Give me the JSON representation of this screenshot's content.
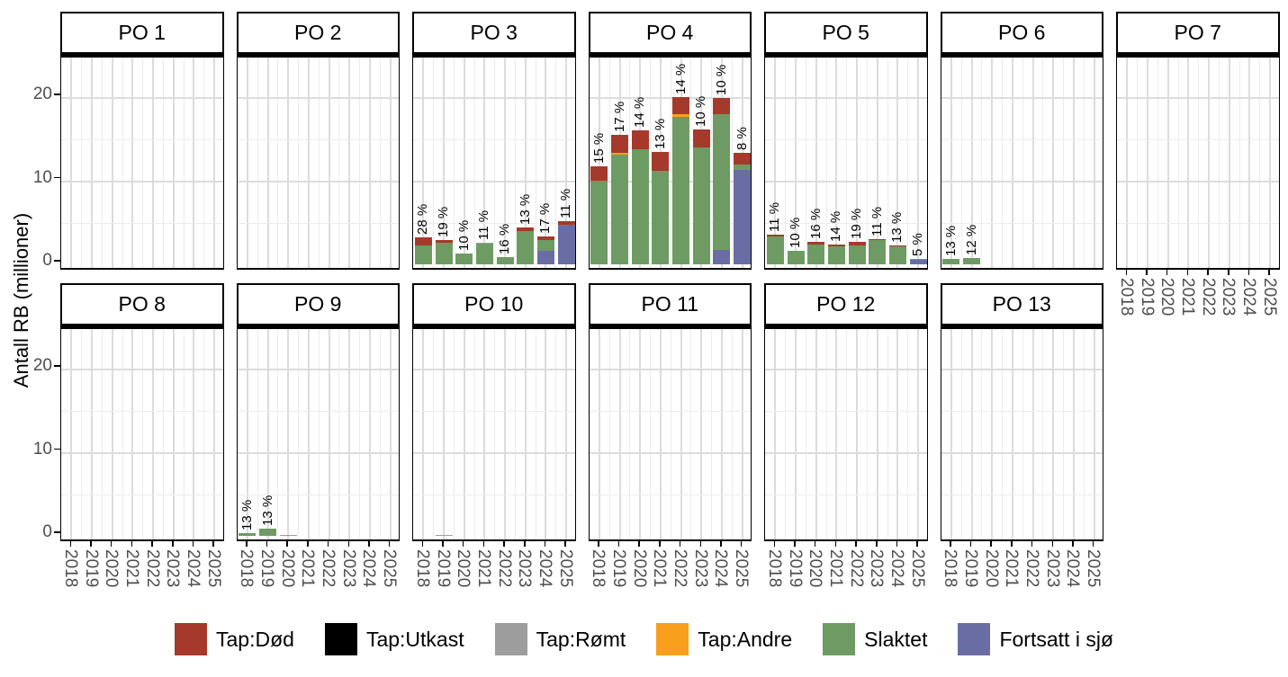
{
  "chart_data": {
    "type": "bar",
    "stacked": true,
    "title": "",
    "ylabel": "Antall RB (millioner)",
    "categories": [
      "2018",
      "2019",
      "2020",
      "2021",
      "2022",
      "2023",
      "2024",
      "2025"
    ],
    "y_ticks": [
      "0",
      "10",
      "20"
    ],
    "ylim": [
      0,
      25
    ],
    "grid": true,
    "legend_position": "bottom",
    "series": [
      {
        "key": "dod",
        "label": "Tap:Død",
        "color": "#A5392B"
      },
      {
        "key": "utkast",
        "label": "Tap:Utkast",
        "color": "#000000"
      },
      {
        "key": "romt",
        "label": "Tap:Rømt",
        "color": "#9D9D9D"
      },
      {
        "key": "andre",
        "label": "Tap:Andre",
        "color": "#F8A01E"
      },
      {
        "key": "slaktet",
        "label": "Slaktet",
        "color": "#6D9B63"
      },
      {
        "key": "fortsatt",
        "label": "Fortsatt i sjø",
        "color": "#6A6DA4"
      }
    ],
    "stack_order": [
      "fortsatt",
      "slaktet",
      "andre",
      "romt",
      "utkast",
      "dod"
    ],
    "panels": [
      {
        "title": "PO 1",
        "bars": [
          null,
          null,
          null,
          null,
          null,
          null,
          null,
          null
        ]
      },
      {
        "title": "PO 2",
        "bars": [
          null,
          null,
          null,
          null,
          null,
          null,
          null,
          null
        ]
      },
      {
        "title": "PO 3",
        "bars": [
          {
            "slaktet": 2.3,
            "dod": 0.9,
            "label": "28 %"
          },
          {
            "slaktet": 2.6,
            "dod": 0.35,
            "label": "19 %"
          },
          {
            "slaktet": 1.3,
            "label": "10 %"
          },
          {
            "slaktet": 2.45,
            "romt": 0.12,
            "label": "11 %"
          },
          {
            "slaktet": 0.85,
            "label": "16 %"
          },
          {
            "slaktet": 3.95,
            "dod": 0.45,
            "label": "13 %"
          },
          {
            "fortsatt": 1.65,
            "slaktet": 1.3,
            "dod": 0.45,
            "label": "17 %"
          },
          {
            "fortsatt": 4.75,
            "dod": 0.4,
            "label": "11 %"
          }
        ]
      },
      {
        "title": "PO 4",
        "bars": [
          {
            "slaktet": 10.1,
            "dod": 1.7,
            "label": "15 %"
          },
          {
            "slaktet": 13.2,
            "andre": 0.25,
            "dod": 2.1,
            "label": "17 %"
          },
          {
            "slaktet": 13.8,
            "dod": 2.3,
            "label": "14 %"
          },
          {
            "slaktet": 11.2,
            "dod": 2.3,
            "label": "13 %"
          },
          {
            "slaktet": 17.7,
            "andre": 0.35,
            "dod": 2.1,
            "label": "14 %"
          },
          {
            "slaktet": 14.1,
            "dod": 2.1,
            "label": "10 %"
          },
          {
            "fortsatt": 1.75,
            "slaktet": 16.3,
            "dod": 1.9,
            "label": "10 %"
          },
          {
            "fortsatt": 11.4,
            "slaktet": 0.6,
            "dod": 1.4,
            "label": "8 %"
          }
        ]
      },
      {
        "title": "PO 5",
        "bars": [
          {
            "slaktet": 3.3,
            "dod": 0.3,
            "label": "11 %"
          },
          {
            "slaktet": 1.6,
            "label": "10 %"
          },
          {
            "slaktet": 2.4,
            "dod": 0.3,
            "label": "16 %"
          },
          {
            "slaktet": 2.2,
            "dod": 0.15,
            "label": "14 %"
          },
          {
            "slaktet": 2.3,
            "dod": 0.35,
            "label": "19 %"
          },
          {
            "slaktet": 2.9,
            "dod": 0.1,
            "label": "11 %"
          },
          {
            "slaktet": 2.2,
            "dod": 0.1,
            "label": "13 %"
          },
          {
            "fortsatt": 0.55,
            "slaktet": 0.15,
            "label": "5 %"
          }
        ]
      },
      {
        "title": "PO 6",
        "bars": [
          {
            "slaktet": 0.7,
            "label": "13 %"
          },
          {
            "slaktet": 0.75,
            "label": "12 %"
          },
          null,
          null,
          null,
          null,
          null,
          null
        ]
      },
      {
        "title": "PO 7",
        "bars": [
          null,
          null,
          null,
          null,
          null,
          null,
          null,
          null
        ]
      },
      {
        "title": "PO 8",
        "bars": [
          null,
          null,
          null,
          null,
          null,
          null,
          null,
          null
        ]
      },
      {
        "title": "PO 9",
        "bars": [
          {
            "slaktet": 0.35,
            "label": "13 %"
          },
          {
            "slaktet": 0.85,
            "label": "13 %"
          },
          {
            "romt": 0.1
          },
          null,
          null,
          null,
          null,
          null
        ]
      },
      {
        "title": "PO 10",
        "bars": [
          null,
          {
            "romt": 0.1
          },
          null,
          null,
          null,
          null,
          null,
          null
        ]
      },
      {
        "title": "PO 11",
        "bars": [
          null,
          null,
          null,
          null,
          null,
          null,
          null,
          null
        ]
      },
      {
        "title": "PO 12",
        "bars": [
          null,
          null,
          null,
          null,
          null,
          null,
          null,
          null
        ]
      },
      {
        "title": "PO 13",
        "bars": [
          null,
          null,
          null,
          null,
          null,
          null,
          null,
          null
        ]
      }
    ]
  }
}
